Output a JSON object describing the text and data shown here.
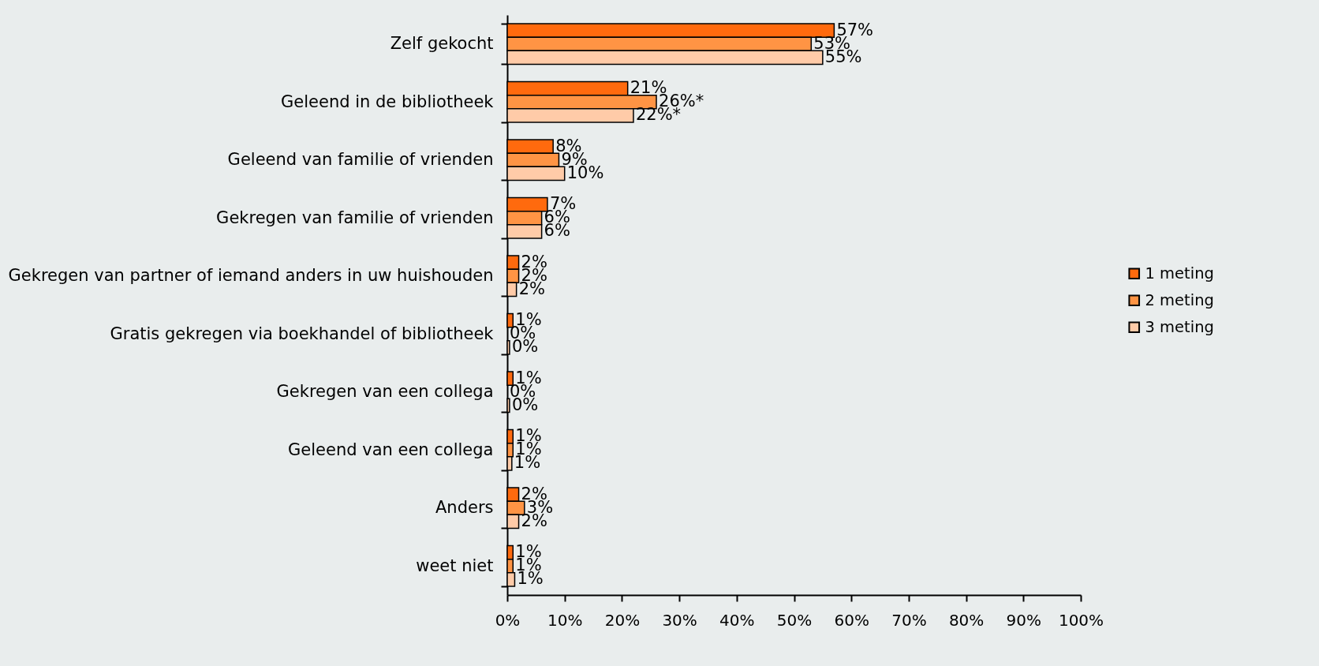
{
  "chart_data": {
    "type": "bar",
    "orientation": "horizontal",
    "categories": [
      "Zelf gekocht",
      "Geleend in de bibliotheek",
      "Geleend van familie of vrienden",
      "Gekregen van familie of vrienden",
      "Gekregen van partner of iemand anders in uw huishouden",
      "Gratis gekregen via boekhandel of bibliotheek",
      "Gekregen van een collega",
      "Geleend van een collega",
      "Anders",
      "weet niet"
    ],
    "series": [
      {
        "name": "1 meting",
        "color": "#ff6a0e",
        "values": [
          57,
          21,
          8,
          7,
          2,
          1,
          1,
          1,
          2,
          1
        ],
        "value_labels": [
          "57%",
          "21%",
          "8%",
          "7%",
          "2%",
          "1%",
          "1%",
          "1%",
          "2%",
          "1%"
        ]
      },
      {
        "name": "2 meting",
        "color": "#ff9444",
        "values": [
          53,
          26,
          9,
          6,
          2,
          0,
          0,
          1,
          3,
          1
        ],
        "value_labels": [
          "53%",
          "26%*",
          "9%",
          "6%",
          "2%",
          "0%",
          "0%",
          "1%",
          "3%",
          "1%"
        ]
      },
      {
        "name": "3 meting",
        "color": "#ffcba8",
        "values": [
          55,
          22,
          10,
          6,
          1.6,
          0.4,
          0.4,
          0.8,
          2,
          1.3
        ],
        "value_labels": [
          "55%",
          "22%*",
          "10%",
          "6%",
          "2%",
          "0%",
          "0%",
          "1%",
          "2%",
          "1%"
        ]
      }
    ],
    "xlim": [
      0,
      100
    ],
    "xticks": [
      {
        "value": 0,
        "label": "0%"
      },
      {
        "value": 10,
        "label": "10%"
      },
      {
        "value": 20,
        "label": "20%"
      },
      {
        "value": 30,
        "label": "30%"
      },
      {
        "value": 40,
        "label": "40%"
      },
      {
        "value": 50,
        "label": "50%"
      },
      {
        "value": 60,
        "label": "60%"
      },
      {
        "value": 70,
        "label": "70%"
      },
      {
        "value": 80,
        "label": "80%"
      },
      {
        "value": 90,
        "label": "90%"
      },
      {
        "value": 100,
        "label": "100%"
      }
    ],
    "grid": false,
    "legend": "right"
  }
}
